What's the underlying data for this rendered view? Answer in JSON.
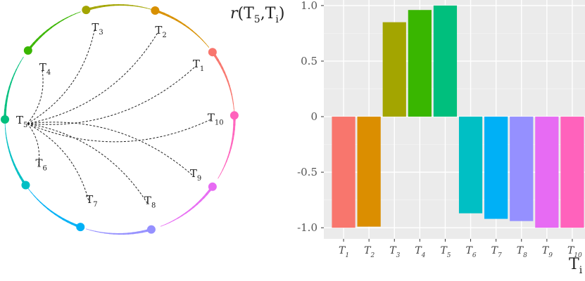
{
  "chart_data": [
    {
      "type": "network",
      "nodes": [
        {
          "id": "T1",
          "base": "T",
          "sub": "1",
          "color": "#F8766D"
        },
        {
          "id": "T2",
          "base": "T",
          "sub": "2",
          "color": "#D89000"
        },
        {
          "id": "T3",
          "base": "T",
          "sub": "3",
          "color": "#A3A500"
        },
        {
          "id": "T4",
          "base": "T",
          "sub": "4",
          "color": "#39B600"
        },
        {
          "id": "T5",
          "base": "T",
          "sub": "5",
          "color": "#00BF7D"
        },
        {
          "id": "T6",
          "base": "T",
          "sub": "6",
          "color": "#00BFC4"
        },
        {
          "id": "T7",
          "base": "T",
          "sub": "7",
          "color": "#00B0F6"
        },
        {
          "id": "T8",
          "base": "T",
          "sub": "8",
          "color": "#9590FF"
        },
        {
          "id": "T9",
          "base": "T",
          "sub": "9",
          "color": "#E76BF3"
        },
        {
          "id": "T10",
          "base": "T",
          "sub": "10",
          "color": "#FF62BC"
        }
      ],
      "edges_from": "T5",
      "edges_to": [
        "T1",
        "T2",
        "T3",
        "T4",
        "T6",
        "T7",
        "T8",
        "T9",
        "T10"
      ]
    },
    {
      "type": "bar",
      "ylabel": {
        "pre": "r(T",
        "sub1": "5",
        "mid": ",T",
        "sub2": "i",
        "post": ")"
      },
      "xlabel": {
        "base": "T",
        "sub": "i"
      },
      "categories": [
        {
          "base": "T",
          "sub": "1"
        },
        {
          "base": "T",
          "sub": "2"
        },
        {
          "base": "T",
          "sub": "3"
        },
        {
          "base": "T",
          "sub": "4"
        },
        {
          "base": "T",
          "sub": "5"
        },
        {
          "base": "T",
          "sub": "6"
        },
        {
          "base": "T",
          "sub": "7"
        },
        {
          "base": "T",
          "sub": "8"
        },
        {
          "base": "T",
          "sub": "9"
        },
        {
          "base": "T",
          "sub": "10"
        }
      ],
      "values": [
        -1.0,
        -0.99,
        0.85,
        0.96,
        1.0,
        -0.87,
        -0.92,
        -0.94,
        -1.0,
        -1.0
      ],
      "colors": [
        "#F8766D",
        "#DB8E00",
        "#A3A500",
        "#39B600",
        "#00BF7D",
        "#00BFC4",
        "#00B0F6",
        "#9590FF",
        "#E76BF3",
        "#FF62BC"
      ],
      "ylim": [
        -1.1,
        1.05
      ],
      "yticks": [
        -1.0,
        -0.5,
        0,
        0.5,
        1.0
      ],
      "ytick_labels": [
        "-1.0",
        "-0.5",
        "0",
        "0.5",
        "1.0"
      ],
      "grid": true
    }
  ]
}
